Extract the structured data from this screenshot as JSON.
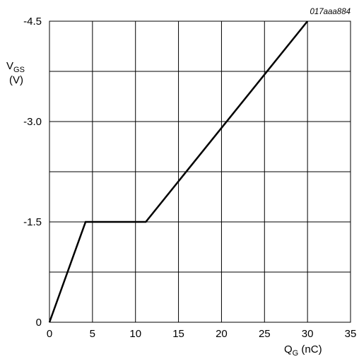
{
  "chart_data": {
    "type": "line",
    "reference_code": "017aaa884",
    "xlabel": {
      "main": "Q",
      "sub": "G",
      "unit": " (nC)"
    },
    "ylabel": {
      "main": "V",
      "sub": "GS",
      "unit": "(V)"
    },
    "xlim": [
      0,
      35
    ],
    "ylim": [
      0,
      -4.5
    ],
    "x_ticks": [
      0,
      5,
      10,
      15,
      20,
      25,
      30,
      35
    ],
    "x_tick_labels": [
      "0",
      "5",
      "10",
      "15",
      "20",
      "25",
      "30",
      "35"
    ],
    "y_ticks": [
      0,
      -1.5,
      -3.0,
      -4.5
    ],
    "y_tick_labels": [
      "0",
      "-1.5",
      "-3.0",
      "-4.5"
    ],
    "grid": true,
    "grid_x_step": 5,
    "grid_y_step": -0.75,
    "series": [
      {
        "x": [
          0,
          4.2,
          11.2,
          30.0
        ],
        "y": [
          0,
          -1.5,
          -1.5,
          -4.5
        ]
      }
    ]
  }
}
